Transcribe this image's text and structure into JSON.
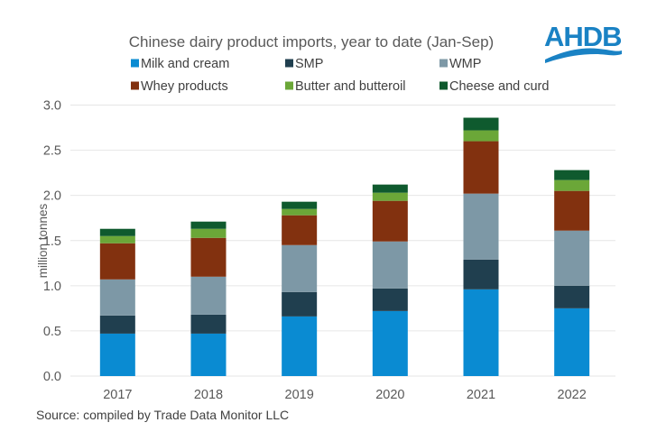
{
  "chart_data": {
    "type": "bar",
    "stacked": true,
    "title": "Chinese dairy product imports, year to date (Jan-Sep)",
    "xlabel": "",
    "ylabel": "million tonnes",
    "ylim": [
      0,
      3.0
    ],
    "yticks": [
      0.0,
      0.5,
      1.0,
      1.5,
      2.0,
      2.5,
      3.0
    ],
    "ytick_labels": [
      "0.0",
      "0.5",
      "1.0",
      "1.5",
      "2.0",
      "2.5",
      "3.0"
    ],
    "grid": true,
    "legend_position": "top",
    "categories": [
      "2017",
      "2018",
      "2019",
      "2020",
      "2021",
      "2022"
    ],
    "series": [
      {
        "name": "Milk and cream",
        "color": "#0a8bd2",
        "values": [
          0.47,
          0.47,
          0.66,
          0.72,
          0.96,
          0.75
        ]
      },
      {
        "name": "SMP",
        "color": "#203f4f",
        "values": [
          0.2,
          0.21,
          0.27,
          0.25,
          0.33,
          0.25
        ]
      },
      {
        "name": "WMP",
        "color": "#7d98a6",
        "values": [
          0.4,
          0.42,
          0.52,
          0.52,
          0.73,
          0.61
        ]
      },
      {
        "name": "Whey products",
        "color": "#82310f",
        "values": [
          0.4,
          0.43,
          0.33,
          0.45,
          0.58,
          0.44
        ]
      },
      {
        "name": "Butter and butteroil",
        "color": "#6ba738",
        "values": [
          0.08,
          0.1,
          0.07,
          0.09,
          0.12,
          0.12
        ]
      },
      {
        "name": "Cheese and curd",
        "color": "#0f5a2e",
        "values": [
          0.08,
          0.08,
          0.08,
          0.09,
          0.14,
          0.11
        ]
      }
    ],
    "source": "Source: compiled by Trade Data Monitor LLC"
  },
  "logo": {
    "text": "AHDB",
    "color": "#1a82c4"
  }
}
